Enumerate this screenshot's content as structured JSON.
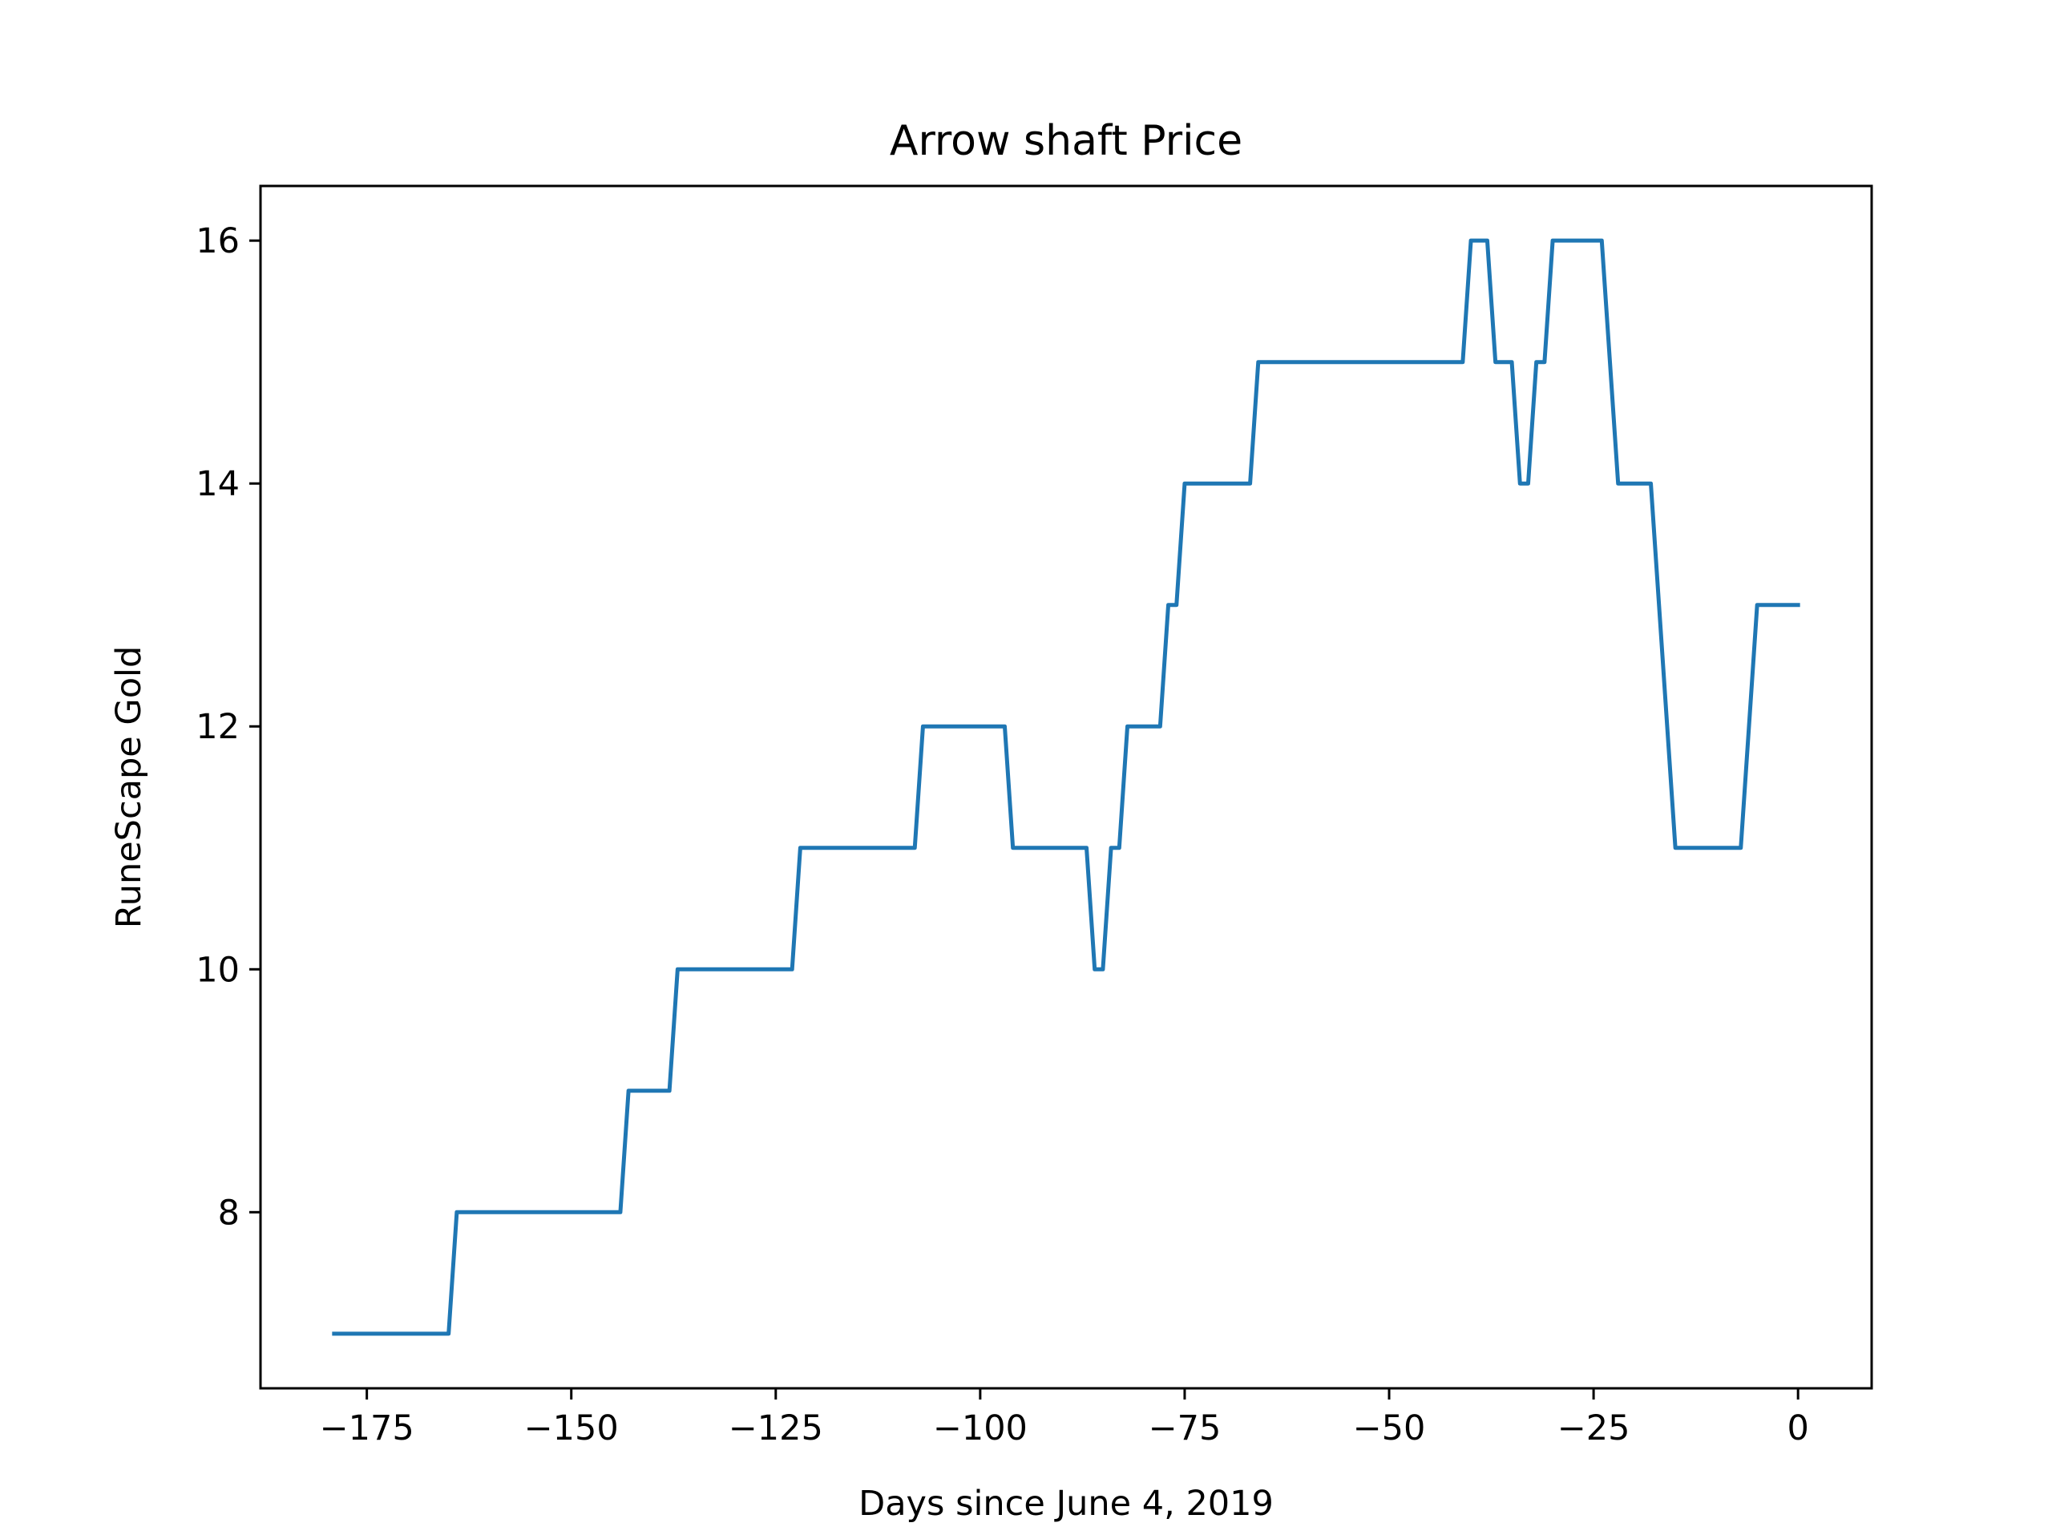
{
  "chart_data": {
    "type": "line",
    "title": "Arrow shaft Price",
    "xlabel": "Days since June 4, 2019",
    "ylabel": "RuneScape Gold",
    "xlim": [
      -188,
      9
    ],
    "ylim": [
      6.55,
      16.45
    ],
    "x_ticks": [
      -175,
      -150,
      -125,
      -100,
      -75,
      -50,
      -25,
      0
    ],
    "x_tick_labels": [
      "−175",
      "−150",
      "−125",
      "−100",
      "−75",
      "−50",
      "−25",
      "0"
    ],
    "y_ticks": [
      8,
      10,
      12,
      14,
      16
    ],
    "y_tick_labels": [
      "8",
      "10",
      "12",
      "14",
      "16"
    ],
    "grid": false,
    "series": [
      {
        "color": "#1f77b4",
        "x": [
          -179,
          -165,
          -164,
          -144,
          -143,
          -138,
          -137,
          -123,
          -122,
          -108,
          -107,
          -97,
          -96,
          -87,
          -86,
          -85,
          -84,
          -83,
          -82,
          -78,
          -77,
          -76,
          -75,
          -67,
          -66,
          -41,
          -40,
          -38,
          -37,
          -35,
          -34,
          -33,
          -32,
          -31,
          -30,
          -24,
          -22,
          -18,
          -15,
          -7,
          -5,
          0
        ],
        "values": [
          7,
          7,
          8,
          8,
          9,
          9,
          10,
          10,
          11,
          11,
          12,
          12,
          11,
          11,
          10,
          10,
          11,
          11,
          12,
          12,
          13,
          13,
          14,
          14,
          15,
          15,
          16,
          16,
          15,
          15,
          14,
          14,
          15,
          15,
          16,
          16,
          14,
          14,
          11,
          11,
          13,
          13
        ]
      }
    ]
  }
}
